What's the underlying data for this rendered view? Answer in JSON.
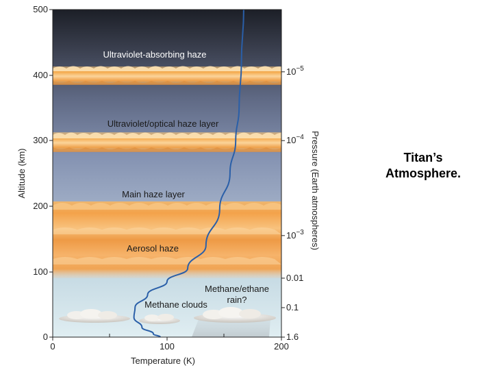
{
  "slide": {
    "title_line1": "Titan’s",
    "title_line2": "Atmosphere."
  },
  "diagram": {
    "left_axis_label": "Altitude (km)",
    "right_axis_label": "Pressure (Earth atmospheres)",
    "bottom_axis_label": "Temperature (K)",
    "altitude_ticks": [
      "0",
      "100",
      "200",
      "300",
      "400",
      "500"
    ],
    "temperature_ticks": [
      "0",
      "100",
      "200"
    ],
    "pressure_ticks": [
      {
        "base": "10",
        "exp": "−5",
        "altitude_km": 405
      },
      {
        "base": "10",
        "exp": "−4",
        "altitude_km": 300
      },
      {
        "base": "10",
        "exp": "−3",
        "altitude_km": 155
      },
      {
        "base": "0.01",
        "exp": "",
        "altitude_km": 90
      },
      {
        "base": "0.1",
        "exp": "",
        "altitude_km": 45
      },
      {
        "base": "1.6",
        "exp": "",
        "altitude_km": 0
      }
    ],
    "layer_labels": {
      "uv_absorbing": "Ultraviolet-absorbing haze",
      "uv_optical": "Ultraviolet/optical haze layer",
      "main_haze": "Main haze layer",
      "aerosol": "Aerosol haze",
      "methane_clouds": "Methane clouds",
      "rain_line1": "Methane/ethane",
      "rain_line2": "rain?"
    },
    "temperature_profile": [
      {
        "t_K": 94,
        "alt_km": 0
      },
      {
        "t_K": 88,
        "alt_km": 5
      },
      {
        "t_K": 78,
        "alt_km": 15
      },
      {
        "t_K": 71,
        "alt_km": 30
      },
      {
        "t_K": 72,
        "alt_km": 45
      },
      {
        "t_K": 83,
        "alt_km": 65
      },
      {
        "t_K": 100,
        "alt_km": 85
      },
      {
        "t_K": 118,
        "alt_km": 105
      },
      {
        "t_K": 134,
        "alt_km": 140
      },
      {
        "t_K": 146,
        "alt_km": 195
      },
      {
        "t_K": 155,
        "alt_km": 250
      },
      {
        "t_K": 160,
        "alt_km": 300
      },
      {
        "t_K": 163,
        "alt_km": 350
      },
      {
        "t_K": 165,
        "alt_km": 420
      },
      {
        "t_K": 167,
        "alt_km": 500
      }
    ],
    "colors": {
      "sky_top": "#1e2129",
      "sky_bottom": "#dcecf2",
      "haze": "#f2a94a",
      "haze_highlight": "#fbd99a",
      "profile_line": "#2a5fa8"
    }
  }
}
